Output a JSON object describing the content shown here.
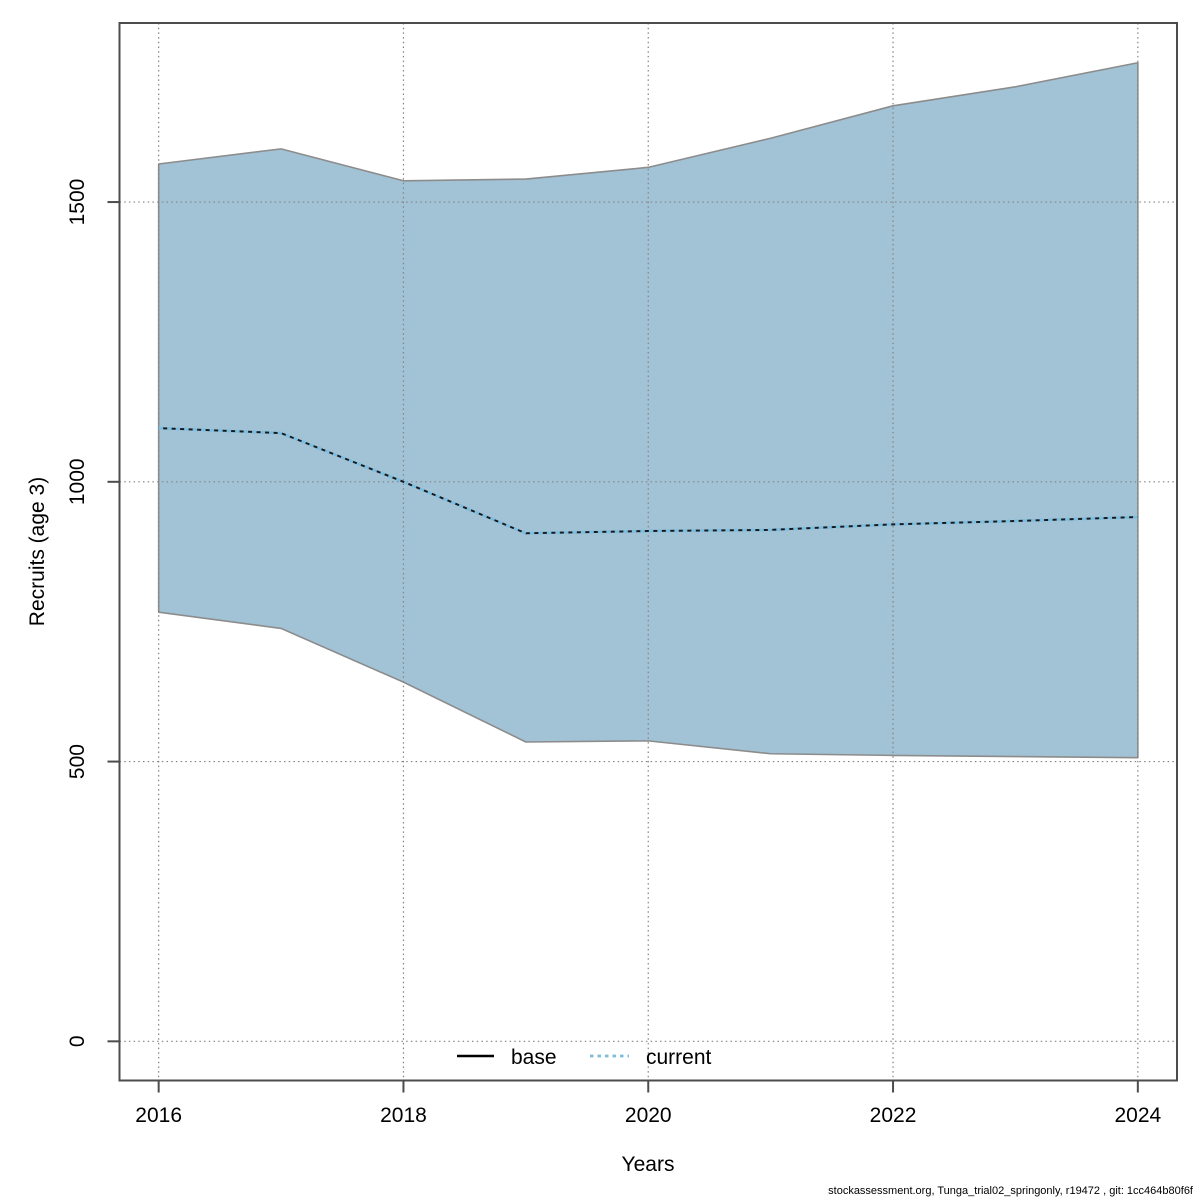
{
  "footer": "stockassessment.org, Tunga_trial02_springonly, r19472 , git: 1cc464b80f6f",
  "chart_data": {
    "type": "area",
    "title": "",
    "xlabel": "Years",
    "ylabel": "Recruits (age 3)",
    "x": [
      2016,
      2017,
      2018,
      2019,
      2020,
      2021,
      2022,
      2023,
      2024
    ],
    "series": [
      {
        "name": "current",
        "role": "median-line",
        "line_style": "dotted",
        "color": "#7cbedf",
        "under_color": "#16191f",
        "values": [
          1096,
          1087,
          1000,
          908,
          912,
          914,
          924,
          930,
          937
        ]
      },
      {
        "name": "confidence-band",
        "role": "band",
        "fill": "#a2c3d6",
        "edge": "#8c8c8c",
        "low": [
          767,
          738,
          642,
          535,
          537,
          514,
          511,
          509,
          507
        ],
        "high": [
          1568,
          1595,
          1538,
          1541,
          1562,
          1614,
          1672,
          1706,
          1749
        ]
      }
    ],
    "legend": [
      {
        "label": "base",
        "line_style": "solid",
        "color": "#000000"
      },
      {
        "label": "current",
        "line_style": "dotted",
        "color": "#7cbedf"
      }
    ],
    "legend_position": "bottom-center",
    "xticks": [
      2016,
      2018,
      2020,
      2022,
      2024
    ],
    "yticks": [
      0,
      500,
      1000,
      1500
    ],
    "xlim": [
      2015.68,
      2024.32
    ],
    "ylim": [
      -70,
      1820
    ],
    "grid": "dotted",
    "grid_color": "#838383",
    "frame_color": "#4c4c4c"
  }
}
